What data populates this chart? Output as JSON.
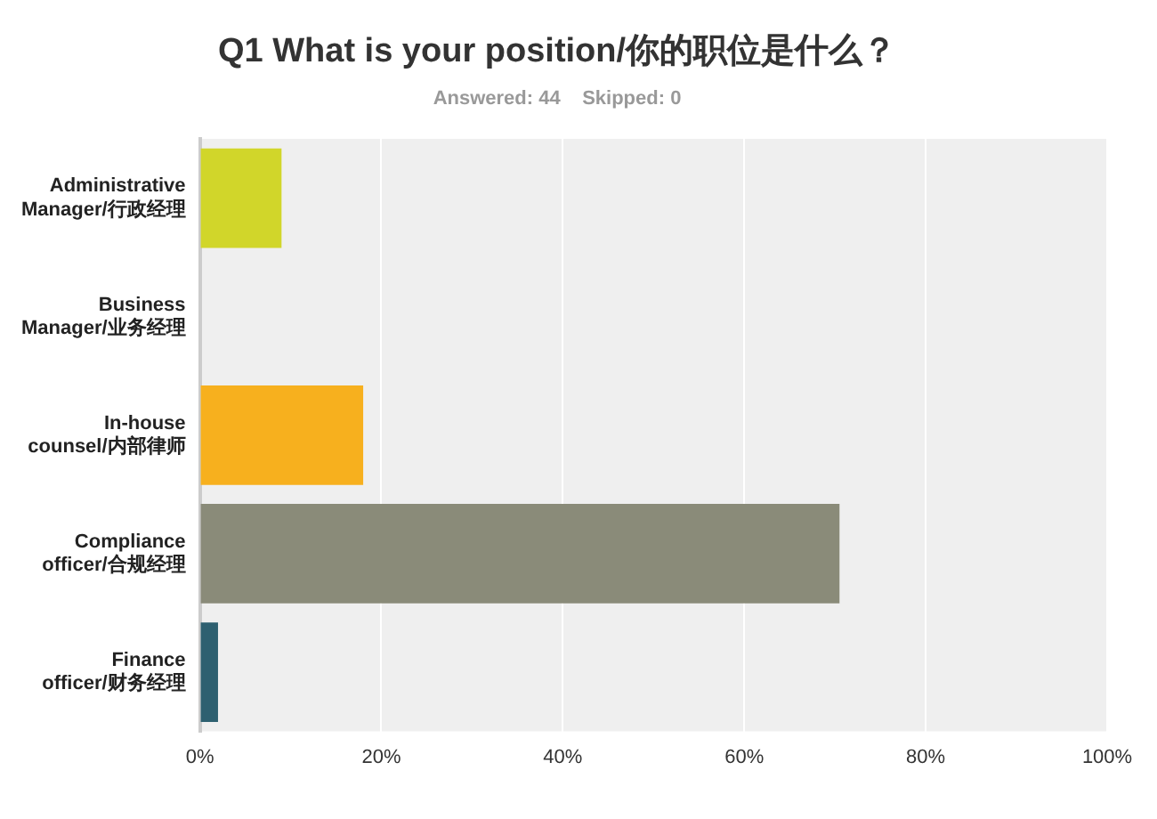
{
  "chart_data": {
    "type": "bar",
    "orientation": "horizontal",
    "title": "Q1 What is your position/你的职位是什么？",
    "subtitle": "Answered: 44    Skipped: 0",
    "categories": [
      "Administrative Manager/行政经理",
      "Business Manager/业务经理",
      "In-house counsel/内部律师",
      "Compliance officer/合规经理",
      "Finance officer/财务经理"
    ],
    "values": [
      9,
      0,
      18,
      70.5,
      2
    ],
    "colors": [
      "#d1d62a",
      "#5b9bd5",
      "#f7b01e",
      "#8a8b79",
      "#2e6070"
    ],
    "xlim": [
      0,
      100
    ],
    "xticks": [
      {
        "value": 0,
        "label": "0%"
      },
      {
        "value": 20,
        "label": "20%"
      },
      {
        "value": 40,
        "label": "40%"
      },
      {
        "value": 60,
        "label": "60%"
      },
      {
        "value": 80,
        "label": "80%"
      },
      {
        "value": 100,
        "label": "100%"
      }
    ],
    "grid": "x",
    "legend": false
  }
}
